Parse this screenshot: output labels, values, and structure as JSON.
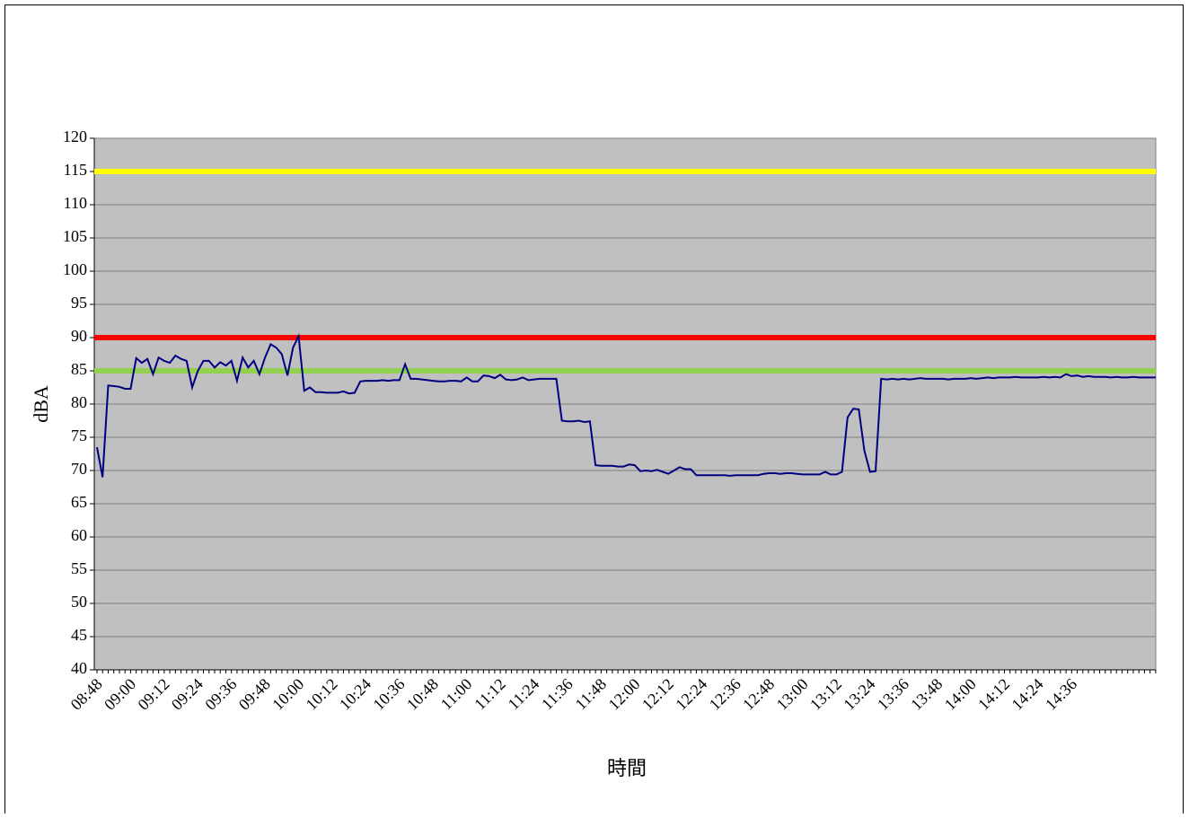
{
  "chart_data": {
    "type": "line",
    "x_label": "時間",
    "y_label": "dBA",
    "color": "#000080",
    "ylim": [
      40,
      120
    ],
    "yticks": [
      40,
      45,
      50,
      55,
      60,
      65,
      70,
      75,
      80,
      85,
      90,
      95,
      100,
      105,
      110,
      115,
      120
    ],
    "grid": true,
    "reference_lines": [
      {
        "value": 115,
        "color": "#ffff00"
      },
      {
        "value": 90,
        "color": "#ff0000"
      },
      {
        "value": 85,
        "color": "#92d050"
      }
    ],
    "categories": [
      "08:48",
      null,
      null,
      null,
      null,
      null,
      "09:00",
      null,
      null,
      null,
      null,
      null,
      "09:12",
      null,
      null,
      null,
      null,
      null,
      "09:24",
      null,
      null,
      null,
      null,
      null,
      "09:36",
      null,
      null,
      null,
      null,
      null,
      "09:48",
      null,
      null,
      null,
      null,
      null,
      "10:00",
      null,
      null,
      null,
      null,
      null,
      "10:12",
      null,
      null,
      null,
      null,
      null,
      "10:24",
      null,
      null,
      null,
      null,
      null,
      "10:36",
      null,
      null,
      null,
      null,
      null,
      "10:48",
      null,
      null,
      null,
      null,
      null,
      "11:00",
      null,
      null,
      null,
      null,
      null,
      "11:12",
      null,
      null,
      null,
      null,
      null,
      "11:24",
      null,
      null,
      null,
      null,
      null,
      "11:36",
      null,
      null,
      null,
      null,
      null,
      "11:48",
      null,
      null,
      null,
      null,
      null,
      "12:00",
      null,
      null,
      null,
      null,
      null,
      "12:12",
      null,
      null,
      null,
      null,
      null,
      "12:24",
      null,
      null,
      null,
      null,
      null,
      "12:36",
      null,
      null,
      null,
      null,
      null,
      "12:48",
      null,
      null,
      null,
      null,
      null,
      "13:00",
      null,
      null,
      null,
      null,
      null,
      "13:12",
      null,
      null,
      null,
      null,
      null,
      "13:24",
      null,
      null,
      null,
      null,
      null,
      "13:36",
      null,
      null,
      null,
      null,
      null,
      "13:48",
      null,
      null,
      null,
      null,
      null,
      "14:00",
      null,
      null,
      null,
      null,
      null,
      "14:12",
      null,
      null,
      null,
      null,
      null,
      "14:24",
      null,
      null,
      null,
      null,
      null,
      "14:36",
      null,
      null,
      null,
      null,
      null,
      null,
      null,
      null,
      null,
      null,
      null,
      null,
      null,
      null,
      null
    ],
    "values": [
      73.5,
      69,
      82.8,
      82.7,
      82.6,
      82.3,
      82.3,
      86.9,
      86.2,
      86.8,
      84.5,
      87,
      86.5,
      86.2,
      87.3,
      86.8,
      86.5,
      82.5,
      85,
      86.5,
      86.5,
      85.5,
      86.3,
      85.8,
      86.5,
      83.5,
      87,
      85.5,
      86.5,
      84.5,
      87,
      89,
      88.5,
      87.5,
      84.3,
      88.5,
      90.2,
      82,
      82.5,
      81.8,
      81.8,
      81.7,
      81.7,
      81.7,
      81.9,
      81.6,
      81.7,
      83.4,
      83.5,
      83.5,
      83.5,
      83.6,
      83.5,
      83.6,
      83.6,
      86,
      83.8,
      83.8,
      83.7,
      83.6,
      83.5,
      83.4,
      83.4,
      83.5,
      83.5,
      83.4,
      84,
      83.4,
      83.4,
      84.3,
      84.2,
      83.9,
      84.4,
      83.7,
      83.6,
      83.7,
      84,
      83.6,
      83.7,
      83.8,
      83.8,
      83.8,
      83.8,
      77.5,
      77.4,
      77.4,
      77.5,
      77.3,
      77.4,
      70.8,
      70.7,
      70.7,
      70.7,
      70.6,
      70.6,
      70.9,
      70.8,
      69.9,
      70,
      69.9,
      70.1,
      69.8,
      69.5,
      70,
      70.5,
      70.2,
      70.2,
      69.3,
      69.3,
      69.3,
      69.3,
      69.3,
      69.3,
      69.2,
      69.3,
      69.3,
      69.3,
      69.3,
      69.3,
      69.5,
      69.6,
      69.6,
      69.5,
      69.6,
      69.6,
      69.5,
      69.4,
      69.4,
      69.4,
      69.4,
      69.8,
      69.4,
      69.4,
      69.8,
      78,
      79.3,
      79.2,
      73,
      69.8,
      69.9,
      83.8,
      83.7,
      83.8,
      83.7,
      83.8,
      83.7,
      83.8,
      83.9,
      83.8,
      83.8,
      83.8,
      83.8,
      83.7,
      83.8,
      83.8,
      83.8,
      83.9,
      83.8,
      83.9,
      84,
      83.9,
      84,
      84,
      84,
      84.1,
      84,
      84,
      84,
      84,
      84.1,
      84,
      84.1,
      84,
      84.5,
      84.2,
      84.3,
      84.1,
      84.2,
      84.1,
      84.1,
      84.1,
      84,
      84.1,
      84,
      84,
      84.1,
      84,
      84,
      84,
      84
    ]
  }
}
